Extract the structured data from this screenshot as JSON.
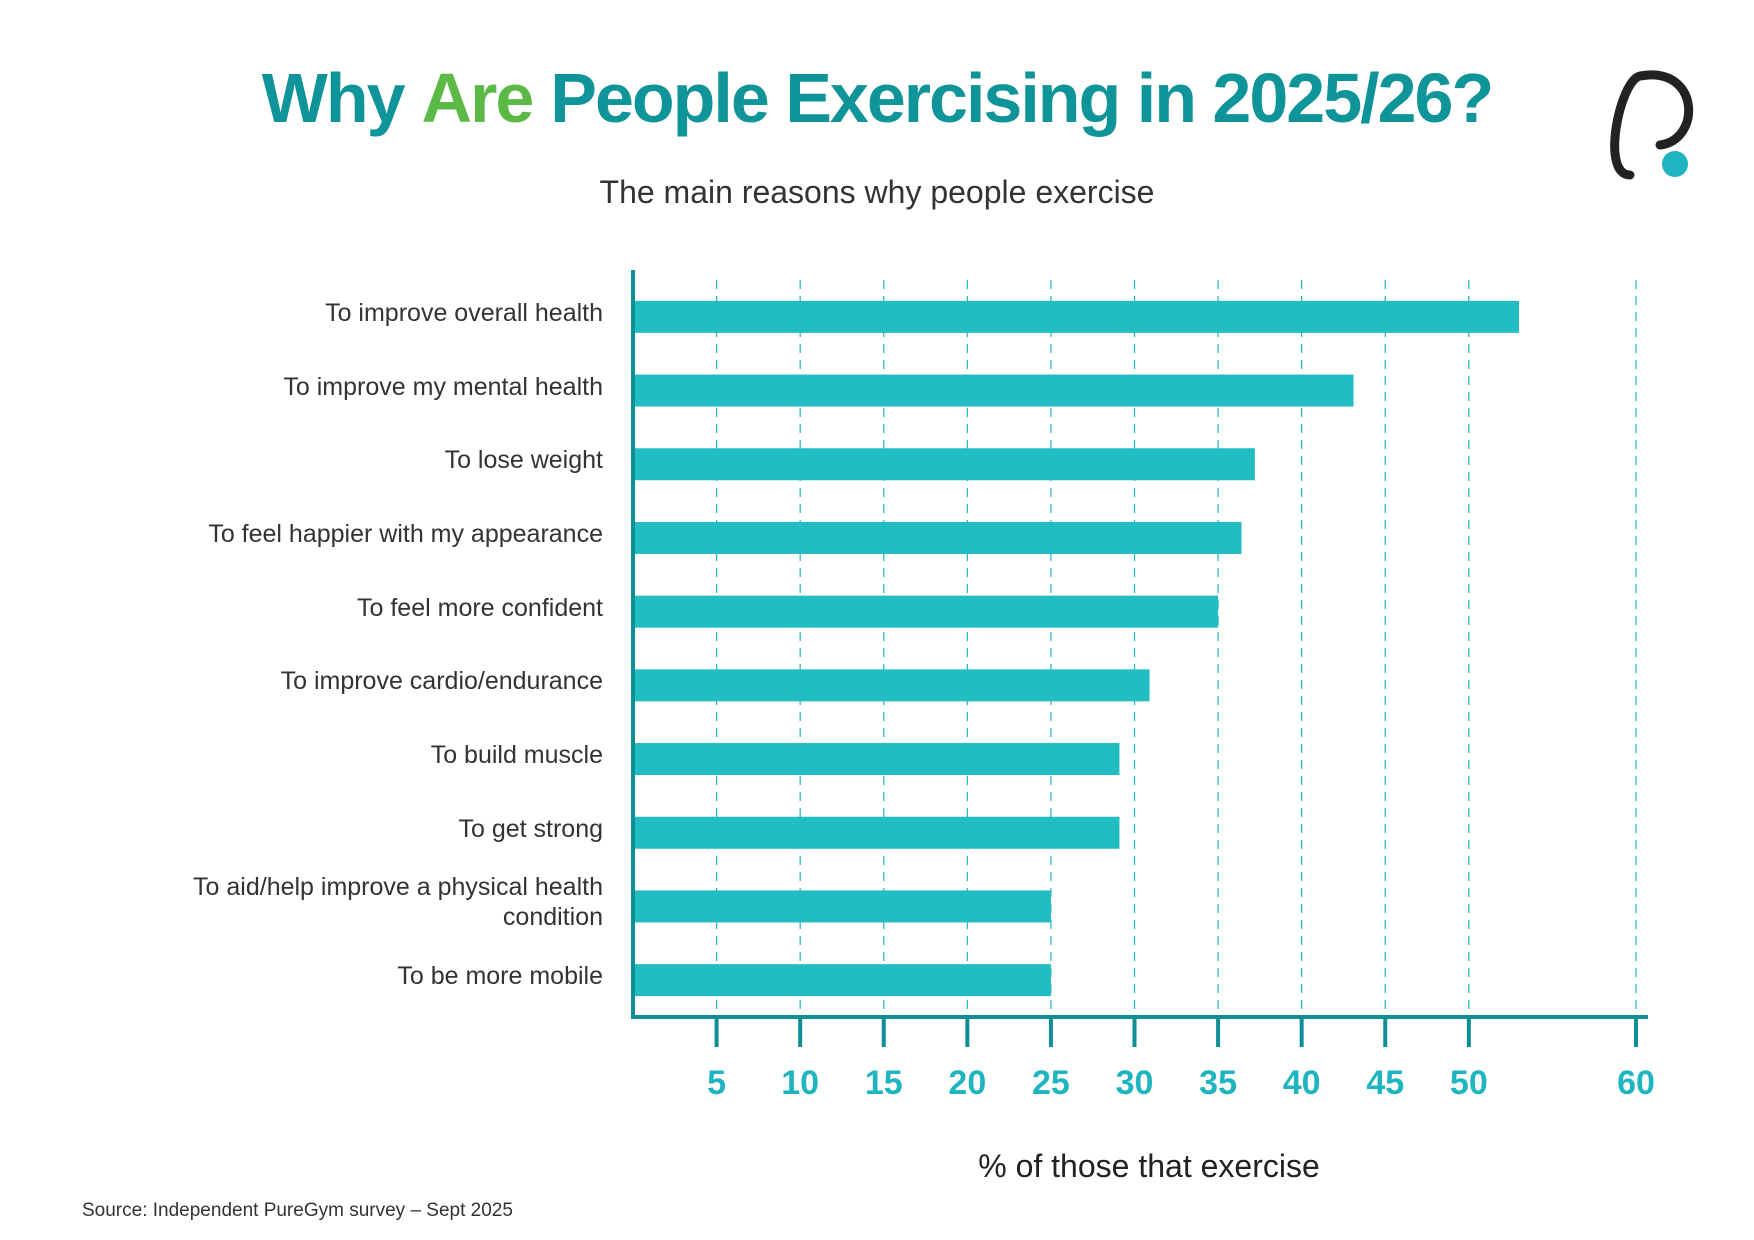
{
  "chart_data": {
    "type": "bar",
    "orientation": "horizontal",
    "title": [
      "Why",
      "Are",
      "People Exercising in 2025/26?"
    ],
    "subtitle": "The main reasons why people exercise",
    "categories": [
      "To improve overall health",
      "To improve my mental health",
      "To lose weight",
      "To feel happier with my appearance",
      "To feel more confident",
      "To improve cardio/endurance",
      "To build muscle",
      "To get strong",
      "To aid/help improve a physical health condition",
      "To be more mobile"
    ],
    "values": [
      53,
      43.1,
      37.2,
      36.4,
      35,
      30.9,
      29.1,
      29.1,
      25,
      25
    ],
    "color": "#22bdc2",
    "xlim": [
      0,
      60
    ],
    "xticks": [
      5,
      10,
      15,
      20,
      25,
      30,
      35,
      40,
      45,
      50,
      60
    ],
    "xlabel": "% of those that exercise",
    "grid": true,
    "source": "Source: Independent PureGym survey – Sept 2025"
  }
}
